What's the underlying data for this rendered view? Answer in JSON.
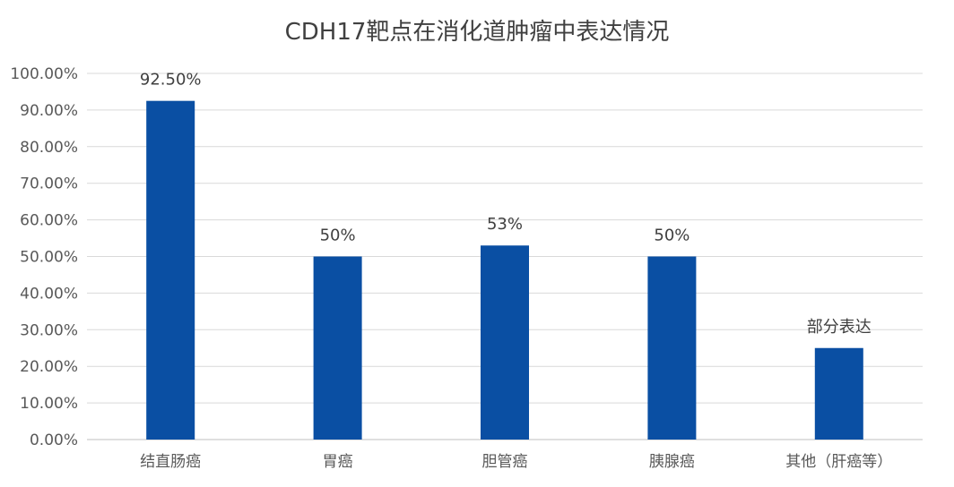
{
  "chart_data": {
    "type": "bar",
    "title": "CDH17靶点在消化道肿瘤中表达情况",
    "xlabel": "",
    "ylabel": "",
    "categories": [
      "结直肠癌",
      "胃癌",
      "胆管癌",
      "胰腺癌",
      "其他（肝癌等）"
    ],
    "values": [
      0.925,
      0.5,
      0.53,
      0.5,
      0.25
    ],
    "data_labels": [
      "92.50%",
      "50%",
      "53%",
      "50%",
      "部分表达"
    ],
    "ylim": [
      0,
      1.0
    ],
    "yticks": [
      "0.00%",
      "10.00%",
      "20.00%",
      "30.00%",
      "40.00%",
      "50.00%",
      "60.00%",
      "70.00%",
      "80.00%",
      "90.00%",
      "100.00%"
    ],
    "grid": true,
    "legend": "none",
    "bar_color": "#0a4fa3"
  }
}
